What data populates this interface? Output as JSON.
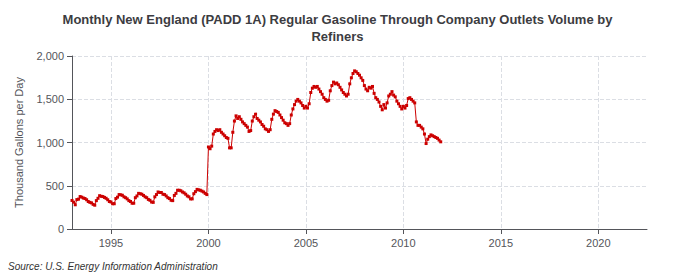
{
  "chart_data": {
    "type": "line",
    "title": "Monthly New England (PADD 1A) Regular Gasoline Through Company Outlets Volume by\nRefiners",
    "ylabel": "Thousand Gallons per Day",
    "annotation": "Source: U.S. Energy Information Administration",
    "color": "#cc0000",
    "marker": "square",
    "line_style": "solid",
    "grid": true,
    "xlim": [
      1993.0,
      2022.5
    ],
    "xticks": [
      1995,
      2000,
      2005,
      2010,
      2015,
      2020
    ],
    "ylim": [
      0,
      2000
    ],
    "yticks": [
      0,
      500,
      {
        "value": 1000,
        "label": "1,000"
      },
      {
        "value": 1500,
        "label": "1,500"
      },
      {
        "value": 2000,
        "label": "2,000"
      }
    ],
    "x": [
      1993.0,
      1993.083,
      1993.167,
      1993.25,
      1993.333,
      1993.417,
      1993.5,
      1993.583,
      1993.667,
      1993.75,
      1993.833,
      1993.917,
      1994.0,
      1994.083,
      1994.167,
      1994.25,
      1994.333,
      1994.417,
      1994.5,
      1994.583,
      1994.667,
      1994.75,
      1994.833,
      1994.917,
      1995.0,
      1995.083,
      1995.167,
      1995.25,
      1995.333,
      1995.417,
      1995.5,
      1995.583,
      1995.667,
      1995.75,
      1995.833,
      1995.917,
      1996.0,
      1996.083,
      1996.167,
      1996.25,
      1996.333,
      1996.417,
      1996.5,
      1996.583,
      1996.667,
      1996.75,
      1996.833,
      1996.917,
      1997.0,
      1997.083,
      1997.167,
      1997.25,
      1997.333,
      1997.417,
      1997.5,
      1997.583,
      1997.667,
      1997.75,
      1997.833,
      1997.917,
      1998.0,
      1998.083,
      1998.167,
      1998.25,
      1998.333,
      1998.417,
      1998.5,
      1998.583,
      1998.667,
      1998.75,
      1998.833,
      1998.917,
      1999.0,
      1999.083,
      1999.167,
      1999.25,
      1999.333,
      1999.417,
      1999.5,
      1999.583,
      1999.667,
      1999.75,
      1999.833,
      1999.917,
      2000.0,
      2000.083,
      2000.167,
      2000.25,
      2000.333,
      2000.417,
      2000.5,
      2000.583,
      2000.667,
      2000.75,
      2000.833,
      2000.917,
      2001.0,
      2001.083,
      2001.167,
      2001.25,
      2001.333,
      2001.417,
      2001.5,
      2001.583,
      2001.667,
      2001.75,
      2001.833,
      2001.917,
      2002.0,
      2002.083,
      2002.167,
      2002.25,
      2002.333,
      2002.417,
      2002.5,
      2002.583,
      2002.667,
      2002.75,
      2002.833,
      2002.917,
      2003.0,
      2003.083,
      2003.167,
      2003.25,
      2003.333,
      2003.417,
      2003.5,
      2003.583,
      2003.667,
      2003.75,
      2003.833,
      2003.917,
      2004.0,
      2004.083,
      2004.167,
      2004.25,
      2004.333,
      2004.417,
      2004.5,
      2004.583,
      2004.667,
      2004.75,
      2004.833,
      2004.917,
      2005.0,
      2005.083,
      2005.167,
      2005.25,
      2005.333,
      2005.417,
      2005.5,
      2005.583,
      2005.667,
      2005.75,
      2005.833,
      2005.917,
      2006.0,
      2006.083,
      2006.167,
      2006.25,
      2006.333,
      2006.417,
      2006.5,
      2006.583,
      2006.667,
      2006.75,
      2006.833,
      2006.917,
      2007.0,
      2007.083,
      2007.167,
      2007.25,
      2007.333,
      2007.417,
      2007.5,
      2007.583,
      2007.667,
      2007.75,
      2007.833,
      2007.917,
      2008.0,
      2008.083,
      2008.167,
      2008.25,
      2008.333,
      2008.417,
      2008.5,
      2008.583,
      2008.667,
      2008.75,
      2008.833,
      2008.917,
      2009.0,
      2009.083,
      2009.167,
      2009.25,
      2009.333,
      2009.417,
      2009.5,
      2009.583,
      2009.667,
      2009.75,
      2009.833,
      2009.917,
      2010.0,
      2010.083,
      2010.167,
      2010.25,
      2010.333,
      2010.417,
      2010.5,
      2010.583,
      2010.667,
      2010.75,
      2010.833,
      2010.917,
      2011.0,
      2011.083,
      2011.167,
      2011.25,
      2011.333,
      2011.417,
      2011.5,
      2011.583,
      2011.667,
      2011.75,
      2011.833,
      2011.917
    ],
    "values": [
      330,
      310,
      280,
      340,
      345,
      375,
      368,
      358,
      352,
      338,
      318,
      308,
      302,
      285,
      275,
      328,
      355,
      385,
      378,
      375,
      365,
      355,
      338,
      318,
      312,
      292,
      292,
      352,
      368,
      398,
      395,
      390,
      372,
      362,
      348,
      328,
      318,
      298,
      298,
      362,
      382,
      412,
      408,
      402,
      388,
      372,
      362,
      342,
      332,
      312,
      308,
      372,
      398,
      428,
      422,
      422,
      402,
      398,
      382,
      362,
      352,
      332,
      328,
      388,
      412,
      448,
      448,
      442,
      428,
      418,
      402,
      382,
      372,
      348,
      348,
      408,
      432,
      458,
      452,
      448,
      438,
      428,
      412,
      398,
      948,
      928,
      958,
      1098,
      1128,
      1148,
      1138,
      1148,
      1118,
      1098,
      1078,
      1058,
      1048,
      938,
      938,
      1118,
      1248,
      1308,
      1278,
      1298,
      1268,
      1238,
      1218,
      1198,
      1178,
      1128,
      1138,
      1248,
      1298,
      1328,
      1278,
      1258,
      1238,
      1208,
      1188,
      1158,
      1148,
      1128,
      1148,
      1268,
      1328,
      1368,
      1358,
      1348,
      1318,
      1288,
      1258,
      1228,
      1218,
      1198,
      1218,
      1318,
      1388,
      1438,
      1478,
      1498,
      1478,
      1458,
      1428,
      1398,
      1418,
      1398,
      1448,
      1578,
      1628,
      1648,
      1638,
      1648,
      1618,
      1588,
      1558,
      1518,
      1498,
      1478,
      1488,
      1598,
      1658,
      1698,
      1678,
      1688,
      1668,
      1638,
      1608,
      1578,
      1558,
      1538,
      1558,
      1678,
      1748,
      1798,
      1828,
      1818,
      1798,
      1778,
      1748,
      1718,
      1658,
      1618,
      1598,
      1638,
      1628,
      1648,
      1568,
      1518,
      1498,
      1468,
      1418,
      1378,
      1438,
      1398,
      1458,
      1538,
      1558,
      1588,
      1548,
      1528,
      1478,
      1448,
      1418,
      1388,
      1418,
      1398,
      1428,
      1508,
      1518,
      1498,
      1478,
      1458,
      1238,
      1198,
      1198,
      1178,
      1158,
      1098,
      988,
      1038,
      1068,
      1088,
      1078,
      1068,
      1058,
      1048,
      1028,
      1008
    ]
  }
}
